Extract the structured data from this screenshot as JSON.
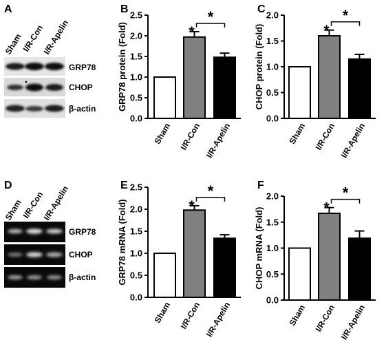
{
  "panel_letters": [
    "A",
    "B",
    "C",
    "D",
    "E",
    "F"
  ],
  "blot_protein": {
    "lanes": [
      "Sham",
      "I/R-Con",
      "I/R-Apelin"
    ],
    "rows": [
      "GRP78",
      "CHOP",
      "β-actin"
    ]
  },
  "blot_mrna": {
    "lanes": [
      "Sham",
      "I/R-Con",
      "I/R-Apelin"
    ],
    "rows": [
      "GRP78",
      "CHOP",
      "β-actin"
    ]
  },
  "colors": {
    "sham": "#ffffff",
    "ir_con": "#808080",
    "ir_apelin": "#000000"
  },
  "chart_data": [
    {
      "panel": "B",
      "type": "bar",
      "categories": [
        "Sham",
        "I/R-Con",
        "I/R-Apelin"
      ],
      "values": [
        1.0,
        1.97,
        1.48
      ],
      "errors": [
        0,
        0.13,
        0.1
      ],
      "ylabel": "GRP78 protein  (Fold)",
      "ylim": [
        0,
        2.5
      ],
      "yticks": [
        "0.0",
        "0.5",
        "1.0",
        "1.5",
        "2.0",
        "2.5"
      ],
      "significance": [
        {
          "bar": 1,
          "mark": "*"
        },
        {
          "between": [
            1,
            2
          ],
          "mark": "*"
        }
      ]
    },
    {
      "panel": "C",
      "type": "bar",
      "categories": [
        "Sham",
        "I/R-Con",
        "I/R-Apelin"
      ],
      "values": [
        1.0,
        1.6,
        1.15
      ],
      "errors": [
        0,
        0.11,
        0.09
      ],
      "ylabel": "CHOP protein  (Fold)",
      "ylim": [
        0,
        2.0
      ],
      "yticks": [
        "0.0",
        "0.5",
        "1.0",
        "1.5",
        "2.0"
      ],
      "significance": [
        {
          "bar": 1,
          "mark": "*"
        },
        {
          "between": [
            1,
            2
          ],
          "mark": "*"
        }
      ]
    },
    {
      "panel": "E",
      "type": "bar",
      "categories": [
        "Sham",
        "I/R-Con",
        "I/R-Apelin"
      ],
      "values": [
        1.0,
        1.98,
        1.34
      ],
      "errors": [
        0,
        0.1,
        0.08
      ],
      "ylabel": "GRP78 mRNA  (Fold)",
      "ylim": [
        0,
        2.5
      ],
      "yticks": [
        "0.0",
        "0.5",
        "1.0",
        "1.5",
        "2.0",
        "2.5"
      ],
      "significance": [
        {
          "bar": 1,
          "mark": "*"
        },
        {
          "between": [
            1,
            2
          ],
          "mark": "*"
        }
      ]
    },
    {
      "panel": "F",
      "type": "bar",
      "categories": [
        "Sham",
        "I/R-Con",
        "I/R-Apelin"
      ],
      "values": [
        1.0,
        1.67,
        1.19
      ],
      "errors": [
        0,
        0.11,
        0.14
      ],
      "ylabel": "CHOP mRNA  (Fold)",
      "ylim": [
        0,
        2.0
      ],
      "yticks": [
        "0.0",
        "0.5",
        "1.0",
        "1.5",
        "2.0"
      ],
      "significance": [
        {
          "bar": 1,
          "mark": "*"
        },
        {
          "between": [
            1,
            2
          ],
          "mark": "*"
        }
      ]
    }
  ]
}
